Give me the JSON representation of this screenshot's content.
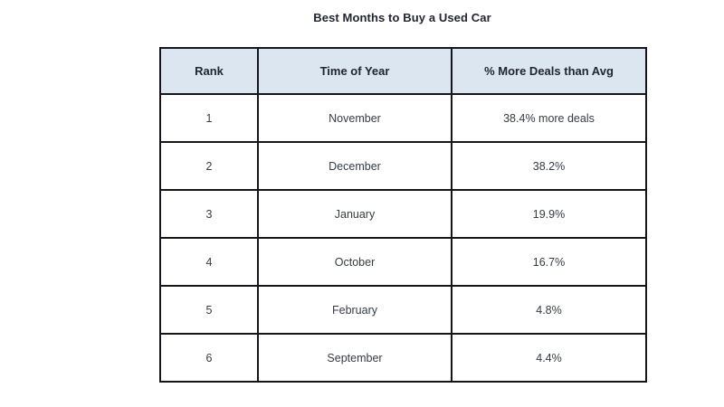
{
  "title": "Best Months to Buy a Used Car",
  "table": {
    "headers": {
      "rank": "Rank",
      "month": "Time of Year",
      "deals": "% More Deals than Avg"
    },
    "rows": [
      {
        "rank": "1",
        "month": "November",
        "deals": "38.4% more deals"
      },
      {
        "rank": "2",
        "month": "December",
        "deals": "38.2%"
      },
      {
        "rank": "3",
        "month": "January",
        "deals": "19.9%"
      },
      {
        "rank": "4",
        "month": "October",
        "deals": "16.7%"
      },
      {
        "rank": "5",
        "month": "February",
        "deals": "4.8%"
      },
      {
        "rank": "6",
        "month": "September",
        "deals": "4.4%"
      }
    ],
    "colors": {
      "header_background": "#dce6f1",
      "row_background": "#ffffff",
      "border": "#15151d"
    }
  },
  "chart_data": {
    "type": "table",
    "title": "Best Months to Buy a Used Car",
    "columns": [
      "Rank",
      "Time of Year",
      "% More Deals than Avg"
    ],
    "rows": [
      [
        1,
        "November",
        "38.4% more deals"
      ],
      [
        2,
        "December",
        "38.2%"
      ],
      [
        3,
        "January",
        "19.9%"
      ],
      [
        4,
        "October",
        "16.7%"
      ],
      [
        5,
        "February",
        "4.8%"
      ],
      [
        6,
        "September",
        "4.4%"
      ]
    ],
    "categories": [
      "November",
      "December",
      "January",
      "October",
      "February",
      "September"
    ],
    "values_pct_more_deals": [
      38.4,
      38.2,
      19.9,
      16.7,
      4.8,
      4.4
    ],
    "legend": "off",
    "grid": "off"
  }
}
